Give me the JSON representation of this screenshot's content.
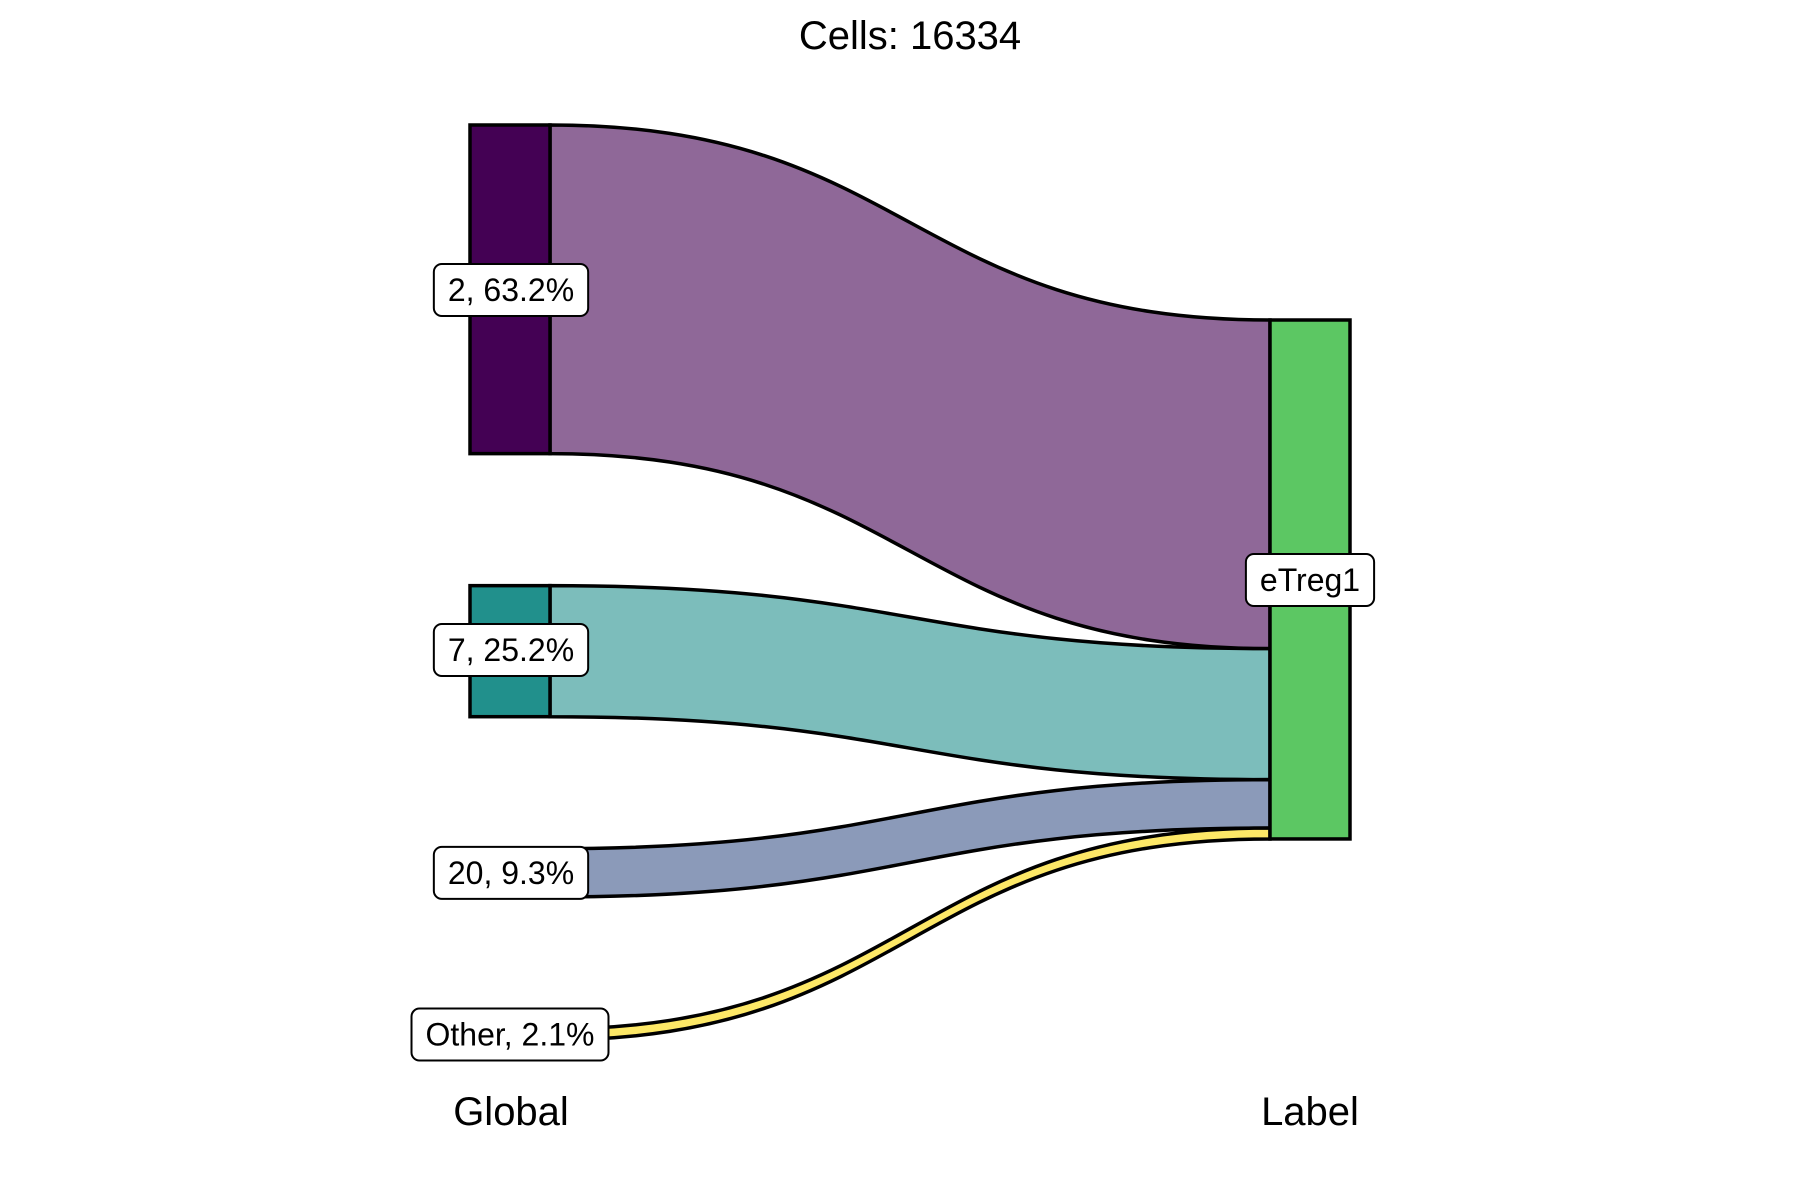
{
  "chart_data": {
    "type": "alluvial",
    "title": "Cells:  16334",
    "axes": [
      "Global",
      "Label"
    ],
    "total": 16334,
    "strata_left": [
      {
        "label": "2, 63.2%",
        "percent": 63.2,
        "fill": "#440154",
        "flow_fill": "#8f6898"
      },
      {
        "label": "7, 25.2%",
        "percent": 25.2,
        "fill": "#21908c",
        "flow_fill": "#7cbdbb"
      },
      {
        "label": "20, 9.3%",
        "percent": 9.3,
        "fill": "#8b9ab9",
        "flow_fill": "#8b9ab9"
      },
      {
        "label": "Other, 2.1%",
        "percent": 2.1,
        "fill": "#fde867",
        "flow_fill": "#fde867"
      }
    ],
    "strata_right": [
      {
        "label": "eTreg1",
        "percent": 100,
        "fill": "#5cc763"
      }
    ],
    "flows": [
      {
        "from": "2, 63.2%",
        "to": "eTreg1",
        "percent": 63.2
      },
      {
        "from": "7, 25.2%",
        "to": "eTreg1",
        "percent": 25.2
      },
      {
        "from": "20, 9.3%",
        "to": "eTreg1",
        "percent": 9.3
      },
      {
        "from": "Other, 2.1%",
        "to": "eTreg1",
        "percent": 2.1
      }
    ]
  }
}
